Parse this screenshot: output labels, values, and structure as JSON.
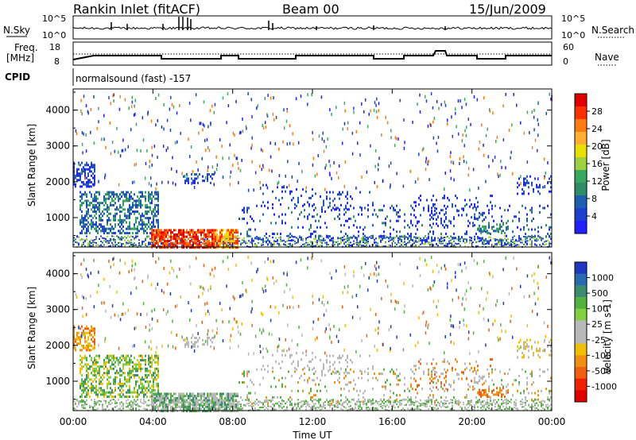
{
  "header": {
    "station": "Rankin Inlet (fitACF)",
    "beam": "Beam 00",
    "date": "15/Jun/2009"
  },
  "nsky_panel": {
    "left_label": "N.Sky",
    "right_label": "N.Search",
    "left_ticks": [
      "10^5",
      "10^0"
    ],
    "right_ticks": [
      "10^5",
      "10^0"
    ]
  },
  "freq_panel": {
    "left_label": "Freq.",
    "left_unit": "[MHz]",
    "left_ticks": [
      "18",
      "8"
    ],
    "right_ticks": [
      "60",
      "0"
    ],
    "right_label": "Nave"
  },
  "cpid_panel": {
    "label": "CPID",
    "text": "normalsound (fast) -157"
  },
  "chart_data": [
    {
      "type": "heatmap",
      "name": "power",
      "ylabel": "Slant Range [km]",
      "xlabel": "",
      "ylim": [
        180,
        4590
      ],
      "yticks": [
        "1000",
        "2000",
        "3000",
        "4000"
      ],
      "colorbar_label": "Power [dB]",
      "colorbar_ticks": [
        "28",
        "24",
        "20",
        "16",
        "12",
        "8",
        "4"
      ],
      "colorbar_colors": [
        "#e00000",
        "#ff3000",
        "#ff7a10",
        "#ffb030",
        "#e8e000",
        "#9fd040",
        "#3aa860",
        "#2e8c6a",
        "#1f5fb0",
        "#1f3fd0",
        "#2020ff"
      ]
    },
    {
      "type": "heatmap",
      "name": "velocity",
      "ylabel": "Slant Range [km]",
      "xlabel": "Time UT",
      "ylim": [
        180,
        4590
      ],
      "yticks": [
        "1000",
        "2000",
        "3000",
        "4000"
      ],
      "xticks": [
        "00:00",
        "04:00",
        "08:00",
        "12:00",
        "16:00",
        "20:00",
        "00:00"
      ],
      "colorbar_label": "Velocity [m s-1]",
      "colorbar_ticks": [
        "1000",
        "500",
        "100",
        "25",
        "-25",
        "-100",
        "-500",
        "-1000"
      ],
      "colorbar_colors": [
        "#2038c0",
        "#2a6ab0",
        "#3c8c70",
        "#52b240",
        "#80d040",
        "#b8b8b8",
        "#b8b8b8",
        "#f0c000",
        "#f09010",
        "#f06010",
        "#f02000",
        "#e00000"
      ]
    }
  ]
}
